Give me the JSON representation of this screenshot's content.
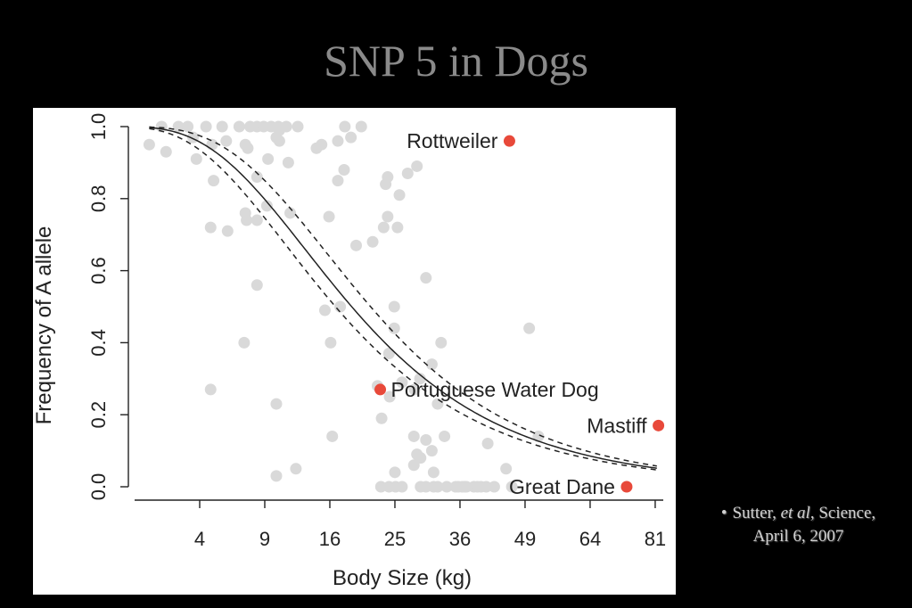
{
  "slide": {
    "title": "SNP 5 in Dogs",
    "citation": {
      "bullet": "•",
      "authors": "Sutter,",
      "etal": "et al",
      "journal": ", Science,",
      "date": "April 6, 2007"
    }
  },
  "chart_data": {
    "type": "scatter",
    "title": "",
    "xlabel": "Body Size (kg)",
    "ylabel": "Frequency of A allele",
    "x_scale": "sqrt",
    "xlim": [
      1,
      84
    ],
    "ylim": [
      0,
      1
    ],
    "x_ticks": [
      4,
      9,
      16,
      25,
      36,
      49,
      64,
      81
    ],
    "x_tick_labels": [
      "4",
      "9",
      "16",
      "25",
      "36",
      "49",
      "64",
      "81"
    ],
    "y_ticks": [
      0,
      0.2,
      0.4,
      0.6,
      0.8,
      1.0
    ],
    "y_tick_labels": [
      "0.0",
      "0.2",
      "0.4",
      "0.6",
      "0.8",
      "1.0"
    ],
    "grid": false,
    "colors": {
      "breeds": "#d9d9d9",
      "highlight": "#e8493a",
      "curve": "#222222"
    },
    "series": [
      {
        "points": [
          [
            1.5,
            0.95
          ],
          [
            2.0,
            1.0
          ],
          [
            2.2,
            0.93
          ],
          [
            2.8,
            1.0
          ],
          [
            3.3,
            1.0
          ],
          [
            3.6,
            0.97
          ],
          [
            3.8,
            0.91
          ],
          [
            4.4,
            1.0
          ],
          [
            4.8,
            0.95
          ],
          [
            4.9,
            0.85
          ],
          [
            4.7,
            0.72
          ],
          [
            4.7,
            0.27
          ],
          [
            5.5,
            1.0
          ],
          [
            5.8,
            0.96
          ],
          [
            5.9,
            0.71
          ],
          [
            6.8,
            1.0
          ],
          [
            7.3,
            0.95
          ],
          [
            7.5,
            0.94
          ],
          [
            7.3,
            0.76
          ],
          [
            7.4,
            0.74
          ],
          [
            7.2,
            0.4
          ],
          [
            7.7,
            1.0
          ],
          [
            8.3,
            1.0
          ],
          [
            8.3,
            0.86
          ],
          [
            8.3,
            0.74
          ],
          [
            8.3,
            0.56
          ],
          [
            8.9,
            1.0
          ],
          [
            9.2,
            0.78
          ],
          [
            9.3,
            0.91
          ],
          [
            9.6,
            1.0
          ],
          [
            10.1,
            0.97
          ],
          [
            10.1,
            0.23
          ],
          [
            10.1,
            0.03
          ],
          [
            10.3,
            1.0
          ],
          [
            10.4,
            0.99
          ],
          [
            10.4,
            0.96
          ],
          [
            11.1,
            1.0
          ],
          [
            11.3,
            0.9
          ],
          [
            11.5,
            0.76
          ],
          [
            12.1,
            0.05
          ],
          [
            12.3,
            1.0
          ],
          [
            14.4,
            0.94
          ],
          [
            15.0,
            0.95
          ],
          [
            15.9,
            0.75
          ],
          [
            15.4,
            0.49
          ],
          [
            16.1,
            0.4
          ],
          [
            16.3,
            0.14
          ],
          [
            17.0,
            0.85
          ],
          [
            17.0,
            0.96
          ],
          [
            17.3,
            0.5
          ],
          [
            17.8,
            0.88
          ],
          [
            17.9,
            1.0
          ],
          [
            18.7,
            0.97
          ],
          [
            19.4,
            0.67
          ],
          [
            20.1,
            1.0
          ],
          [
            21.7,
            0.68
          ],
          [
            22.4,
            0.28
          ],
          [
            23.0,
            0.19
          ],
          [
            22.9,
            0.0
          ],
          [
            23.3,
            0.72
          ],
          [
            23.6,
            0.84
          ],
          [
            23.9,
            0.75
          ],
          [
            23.9,
            0.86
          ],
          [
            24.1,
            0.37
          ],
          [
            24.2,
            0.25
          ],
          [
            24.1,
            0.0
          ],
          [
            24.9,
            0.5
          ],
          [
            24.9,
            0.44
          ],
          [
            25.0,
            0.04
          ],
          [
            25.1,
            0.0
          ],
          [
            25.4,
            0.72
          ],
          [
            25.7,
            0.81
          ],
          [
            26.1,
            0.29
          ],
          [
            26.1,
            0.0
          ],
          [
            27.0,
            0.87
          ],
          [
            28.1,
            0.27
          ],
          [
            28.0,
            0.14
          ],
          [
            28.0,
            0.06
          ],
          [
            28.5,
            0.89
          ],
          [
            28.5,
            0.09
          ],
          [
            29.0,
            0.3
          ],
          [
            29.1,
            0.08
          ],
          [
            29.1,
            0.0
          ],
          [
            30.0,
            0.58
          ],
          [
            30.0,
            0.13
          ],
          [
            30.0,
            0.0
          ],
          [
            31.0,
            0.34
          ],
          [
            31.0,
            0.1
          ],
          [
            31.3,
            0.0
          ],
          [
            31.3,
            0.04
          ],
          [
            32.0,
            0.23
          ],
          [
            32.0,
            0.0
          ],
          [
            32.6,
            0.4
          ],
          [
            33.2,
            0.14
          ],
          [
            33.6,
            0.0
          ],
          [
            35.2,
            0.0
          ],
          [
            35.7,
            0.0
          ],
          [
            36.4,
            0.0
          ],
          [
            36.9,
            0.0
          ],
          [
            37.2,
            0.0
          ],
          [
            38.6,
            0.0
          ],
          [
            39.3,
            0.0
          ],
          [
            40.0,
            0.0
          ],
          [
            41.0,
            0.0
          ],
          [
            41.3,
            0.12
          ],
          [
            42.6,
            0.0
          ],
          [
            45.0,
            0.05
          ],
          [
            46.2,
            0.0
          ],
          [
            49.9,
            0.44
          ],
          [
            51.9,
            0.14
          ]
        ]
      },
      {
        "points": [
          [
            45.7,
            0.96
          ],
          [
            22.8,
            0.27
          ],
          [
            81.9,
            0.17
          ],
          [
            73.3,
            0.0
          ]
        ],
        "labels": [
          "Rottweiler",
          "Portuguese Water Dog",
          "Mastiff",
          "Great Dane"
        ],
        "label_anchor": [
          "end",
          "start",
          "end",
          "end"
        ]
      }
    ],
    "fit_curves": [
      {
        "name": "",
        "style": "solid",
        "midpoint": 18.8,
        "steepness": 0.42
      },
      {
        "name": "",
        "style": "dashed",
        "midpoint": 21.4,
        "steepness": 0.42
      },
      {
        "name": "",
        "style": "dashed",
        "midpoint": 16.7,
        "steepness": 0.42
      }
    ]
  }
}
